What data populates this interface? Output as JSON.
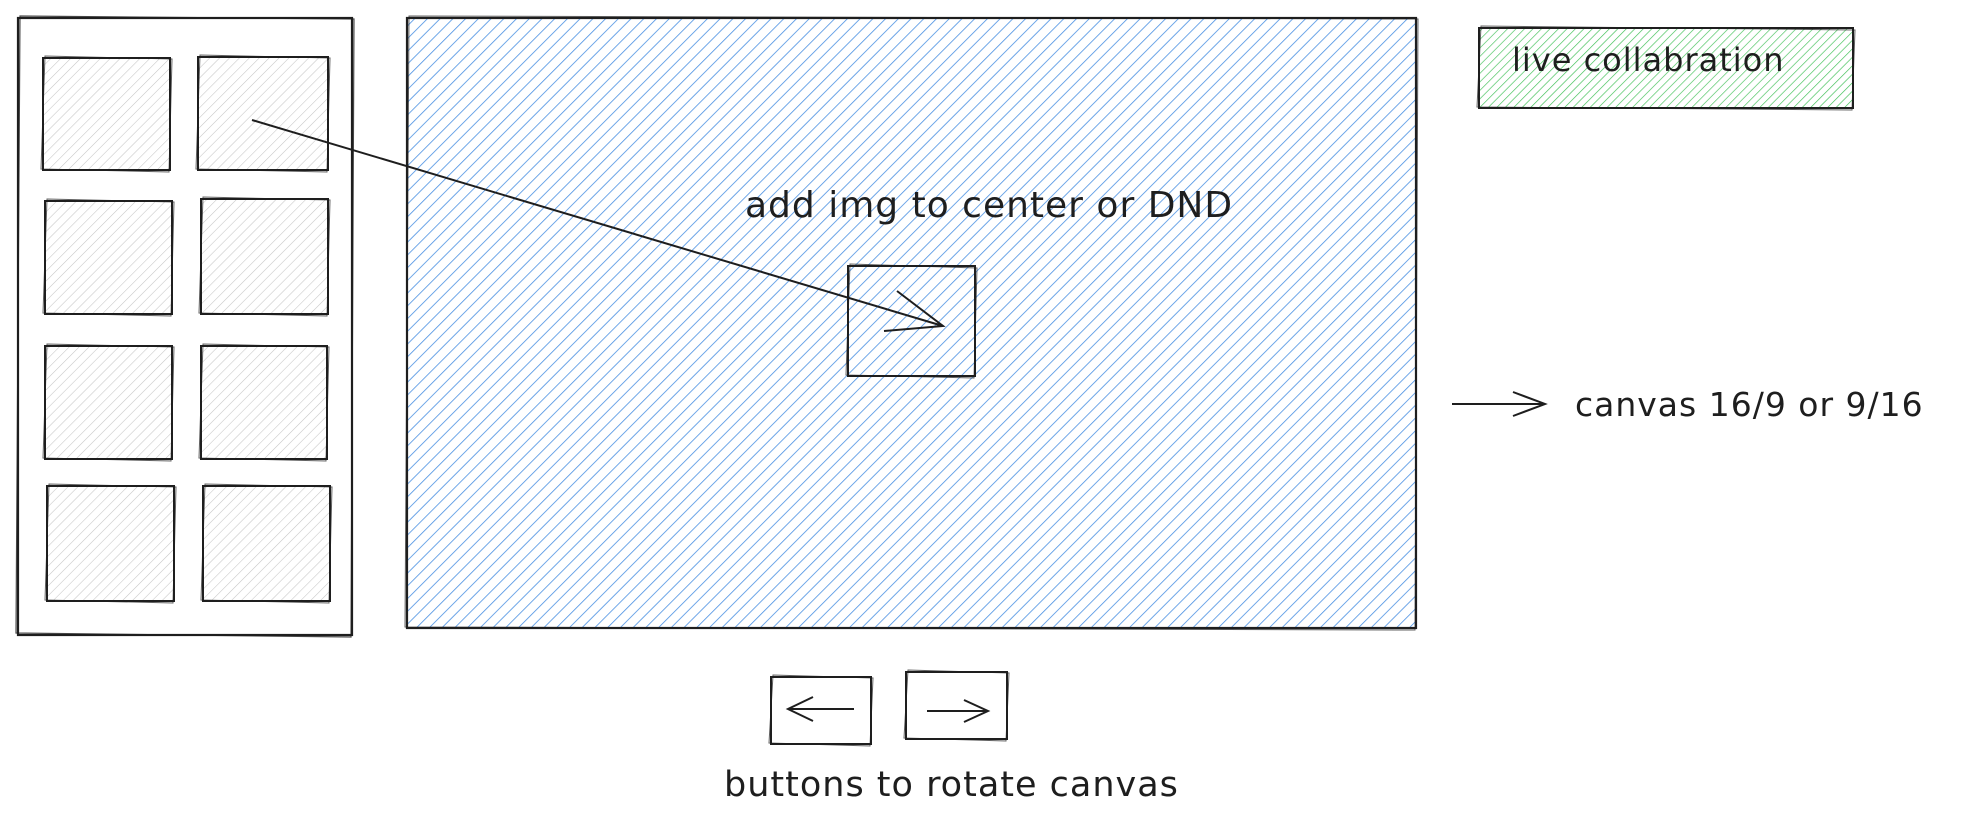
{
  "palette": {
    "stroke": "#1e1e1e",
    "canvas_fill": "#4a90e2",
    "collab_fill": "#40c057",
    "thumb_fill": "#c5c5c5"
  },
  "thumbnails": {
    "count": 8,
    "columns": 2
  },
  "canvas": {
    "instruction_label": "add img to center or DND"
  },
  "collaboration": {
    "button_label": "live collabration"
  },
  "annotations": {
    "canvas_ratio_note": "canvas 16/9 or 9/16",
    "rotate_note": "buttons to rotate canvas"
  },
  "icons": {
    "rotate_left": "arrow-left-icon",
    "rotate_right": "arrow-right-icon",
    "drop_target": "arrow-right-icon",
    "annotation_pointer": "arrow-right-icon"
  }
}
